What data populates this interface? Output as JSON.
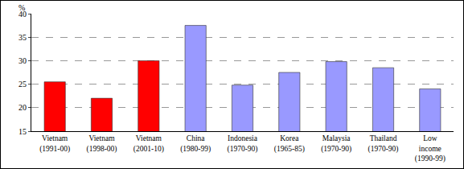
{
  "chart_data": {
    "type": "bar",
    "ylabel": "%",
    "categories": [
      "Vietnam\n(1991-00)",
      "Vietnam\n(1998-00)",
      "Vietnam\n(2001-10)",
      "China\n(1980-99)",
      "Indonesia\n(1970-90)",
      "Korea\n(1965-85)",
      "Malaysia\n(1970-90)",
      "Thailand\n(1970-90)",
      "Low\nincome\n(1990-99)"
    ],
    "values": [
      25.5,
      22,
      30,
      37.5,
      24.8,
      27.5,
      29.8,
      28.5,
      24
    ],
    "colors": [
      "#ff0000",
      "#ff0000",
      "#ff0000",
      "#9999ff",
      "#9999ff",
      "#9999ff",
      "#9999ff",
      "#9999ff",
      "#9999ff"
    ],
    "ylim": [
      15,
      40
    ],
    "yticks": [
      15,
      20,
      25,
      30,
      35,
      40
    ],
    "grid": true
  }
}
